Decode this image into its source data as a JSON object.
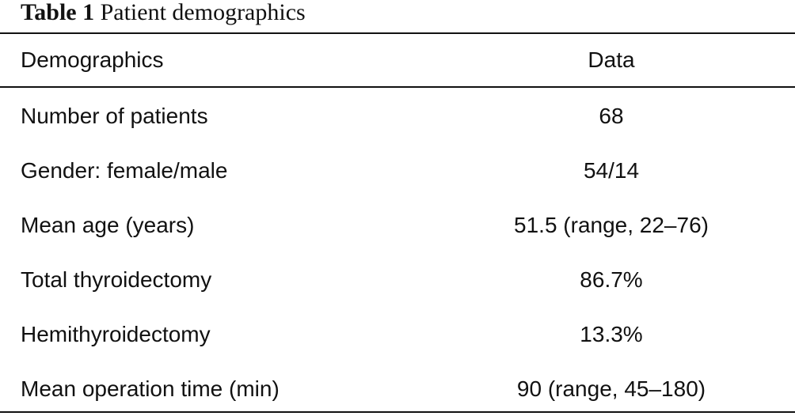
{
  "caption": {
    "label": "Table 1",
    "title": "Patient demographics"
  },
  "table": {
    "columns": [
      "Demographics",
      "Data"
    ],
    "rows": [
      [
        "Number of patients",
        "68"
      ],
      [
        "Gender: female/male",
        "54/14"
      ],
      [
        "Mean age (years)",
        "51.5 (range, 22–76)"
      ],
      [
        "Total thyroidectomy",
        "86.7%"
      ],
      [
        "Hemithyroidectomy",
        "13.3%"
      ],
      [
        "Mean operation time (min)",
        "90 (range, 45–180)"
      ]
    ]
  }
}
